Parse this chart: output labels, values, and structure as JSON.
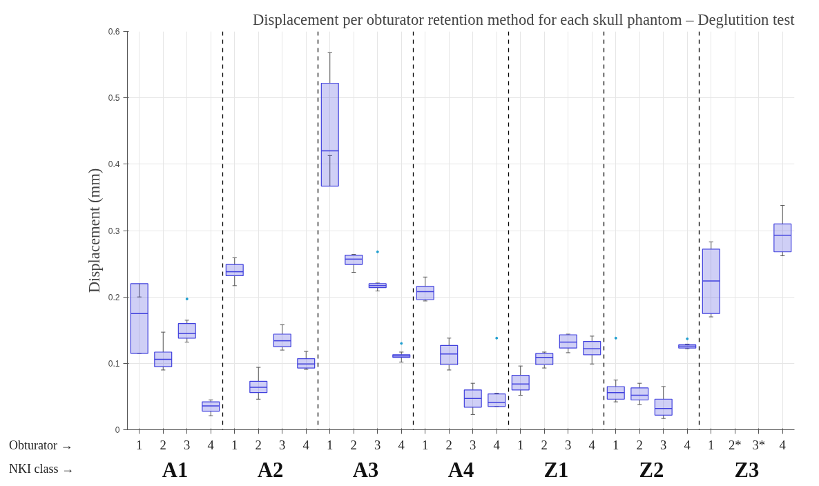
{
  "chart_data": {
    "type": "box",
    "title": "Displacement per obturator retention method for each skull phantom – Deglutition test",
    "ylabel": "Displacement (mm)",
    "xlabel": "Obturator →",
    "annotations": [
      "NKI class →",
      "A1",
      "A2",
      "A3",
      "A4",
      "Z1",
      "Z2",
      "Z3"
    ],
    "categories": [
      "1",
      "2",
      "3",
      "4",
      "1",
      "2",
      "3",
      "4",
      "1",
      "2",
      "3",
      "4",
      "1",
      "2",
      "3",
      "4",
      "1",
      "2",
      "3",
      "4",
      "1",
      "2",
      "3",
      "4",
      "1",
      "2*",
      "3*",
      "4"
    ],
    "ylim": [
      0,
      0.6
    ],
    "yticks": [
      0,
      0.1,
      0.2,
      0.3,
      0.4,
      0.5,
      0.6
    ],
    "grid": true,
    "series": [
      {
        "color": "#4040dd",
        "boxes": [
          {
            "low": 0.115,
            "q1": 0.115,
            "median": 0.175,
            "q3": 0.22,
            "high": 0.2
          },
          {
            "low": 0.09,
            "q1": 0.095,
            "median": 0.106,
            "q3": 0.117,
            "high": 0.147
          },
          {
            "low": 0.132,
            "q1": 0.138,
            "median": 0.145,
            "q3": 0.16,
            "high": 0.165,
            "outliers": [
              0.197
            ]
          },
          {
            "low": 0.021,
            "q1": 0.028,
            "median": 0.036,
            "q3": 0.042,
            "high": 0.045
          },
          {
            "low": 0.217,
            "q1": 0.232,
            "median": 0.238,
            "q3": 0.249,
            "high": 0.259
          },
          {
            "low": 0.046,
            "q1": 0.056,
            "median": 0.064,
            "q3": 0.073,
            "high": 0.094
          },
          {
            "low": 0.12,
            "q1": 0.125,
            "median": 0.134,
            "q3": 0.144,
            "high": 0.158
          },
          {
            "low": 0.091,
            "q1": 0.093,
            "median": 0.099,
            "q3": 0.107,
            "high": 0.118
          },
          {
            "low": 0.413,
            "q1": 0.367,
            "median": 0.42,
            "q3": 0.522,
            "high": 0.568
          },
          {
            "low": 0.237,
            "q1": 0.249,
            "median": 0.257,
            "q3": 0.263,
            "high": 0.264
          },
          {
            "low": 0.209,
            "q1": 0.214,
            "median": 0.217,
            "q3": 0.22,
            "high": 0.221,
            "outliers": [
              0.268
            ]
          },
          {
            "low": 0.102,
            "q1": 0.109,
            "median": 0.111,
            "q3": 0.113,
            "high": 0.117,
            "outliers": [
              0.13
            ]
          },
          {
            "low": 0.194,
            "q1": 0.196,
            "median": 0.208,
            "q3": 0.216,
            "high": 0.23
          },
          {
            "low": 0.09,
            "q1": 0.098,
            "median": 0.114,
            "q3": 0.127,
            "high": 0.138
          },
          {
            "low": 0.023,
            "q1": 0.034,
            "median": 0.047,
            "q3": 0.06,
            "high": 0.07
          },
          {
            "low": 0.035,
            "q1": 0.035,
            "median": 0.041,
            "q3": 0.054,
            "high": 0.055,
            "outliers": [
              0.138
            ]
          },
          {
            "low": 0.052,
            "q1": 0.06,
            "median": 0.069,
            "q3": 0.082,
            "high": 0.096
          },
          {
            "low": 0.093,
            "q1": 0.098,
            "median": 0.109,
            "q3": 0.115,
            "high": 0.117
          },
          {
            "low": 0.116,
            "q1": 0.123,
            "median": 0.132,
            "q3": 0.143,
            "high": 0.144
          },
          {
            "low": 0.099,
            "q1": 0.113,
            "median": 0.122,
            "q3": 0.133,
            "high": 0.141
          },
          {
            "low": 0.042,
            "q1": 0.046,
            "median": 0.056,
            "q3": 0.065,
            "high": 0.075,
            "outliers": [
              0.138
            ]
          },
          {
            "low": 0.038,
            "q1": 0.045,
            "median": 0.052,
            "q3": 0.063,
            "high": 0.07
          },
          {
            "low": 0.017,
            "q1": 0.022,
            "median": 0.032,
            "q3": 0.046,
            "high": 0.065
          },
          {
            "low": 0.122,
            "q1": 0.123,
            "median": 0.126,
            "q3": 0.128,
            "high": 0.129,
            "outliers": [
              0.137
            ]
          },
          {
            "low": 0.17,
            "q1": 0.175,
            "median": 0.224,
            "q3": 0.272,
            "high": 0.283
          },
          null,
          null,
          {
            "low": 0.262,
            "q1": 0.268,
            "median": 0.293,
            "q3": 0.31,
            "high": 0.338
          }
        ]
      }
    ]
  }
}
